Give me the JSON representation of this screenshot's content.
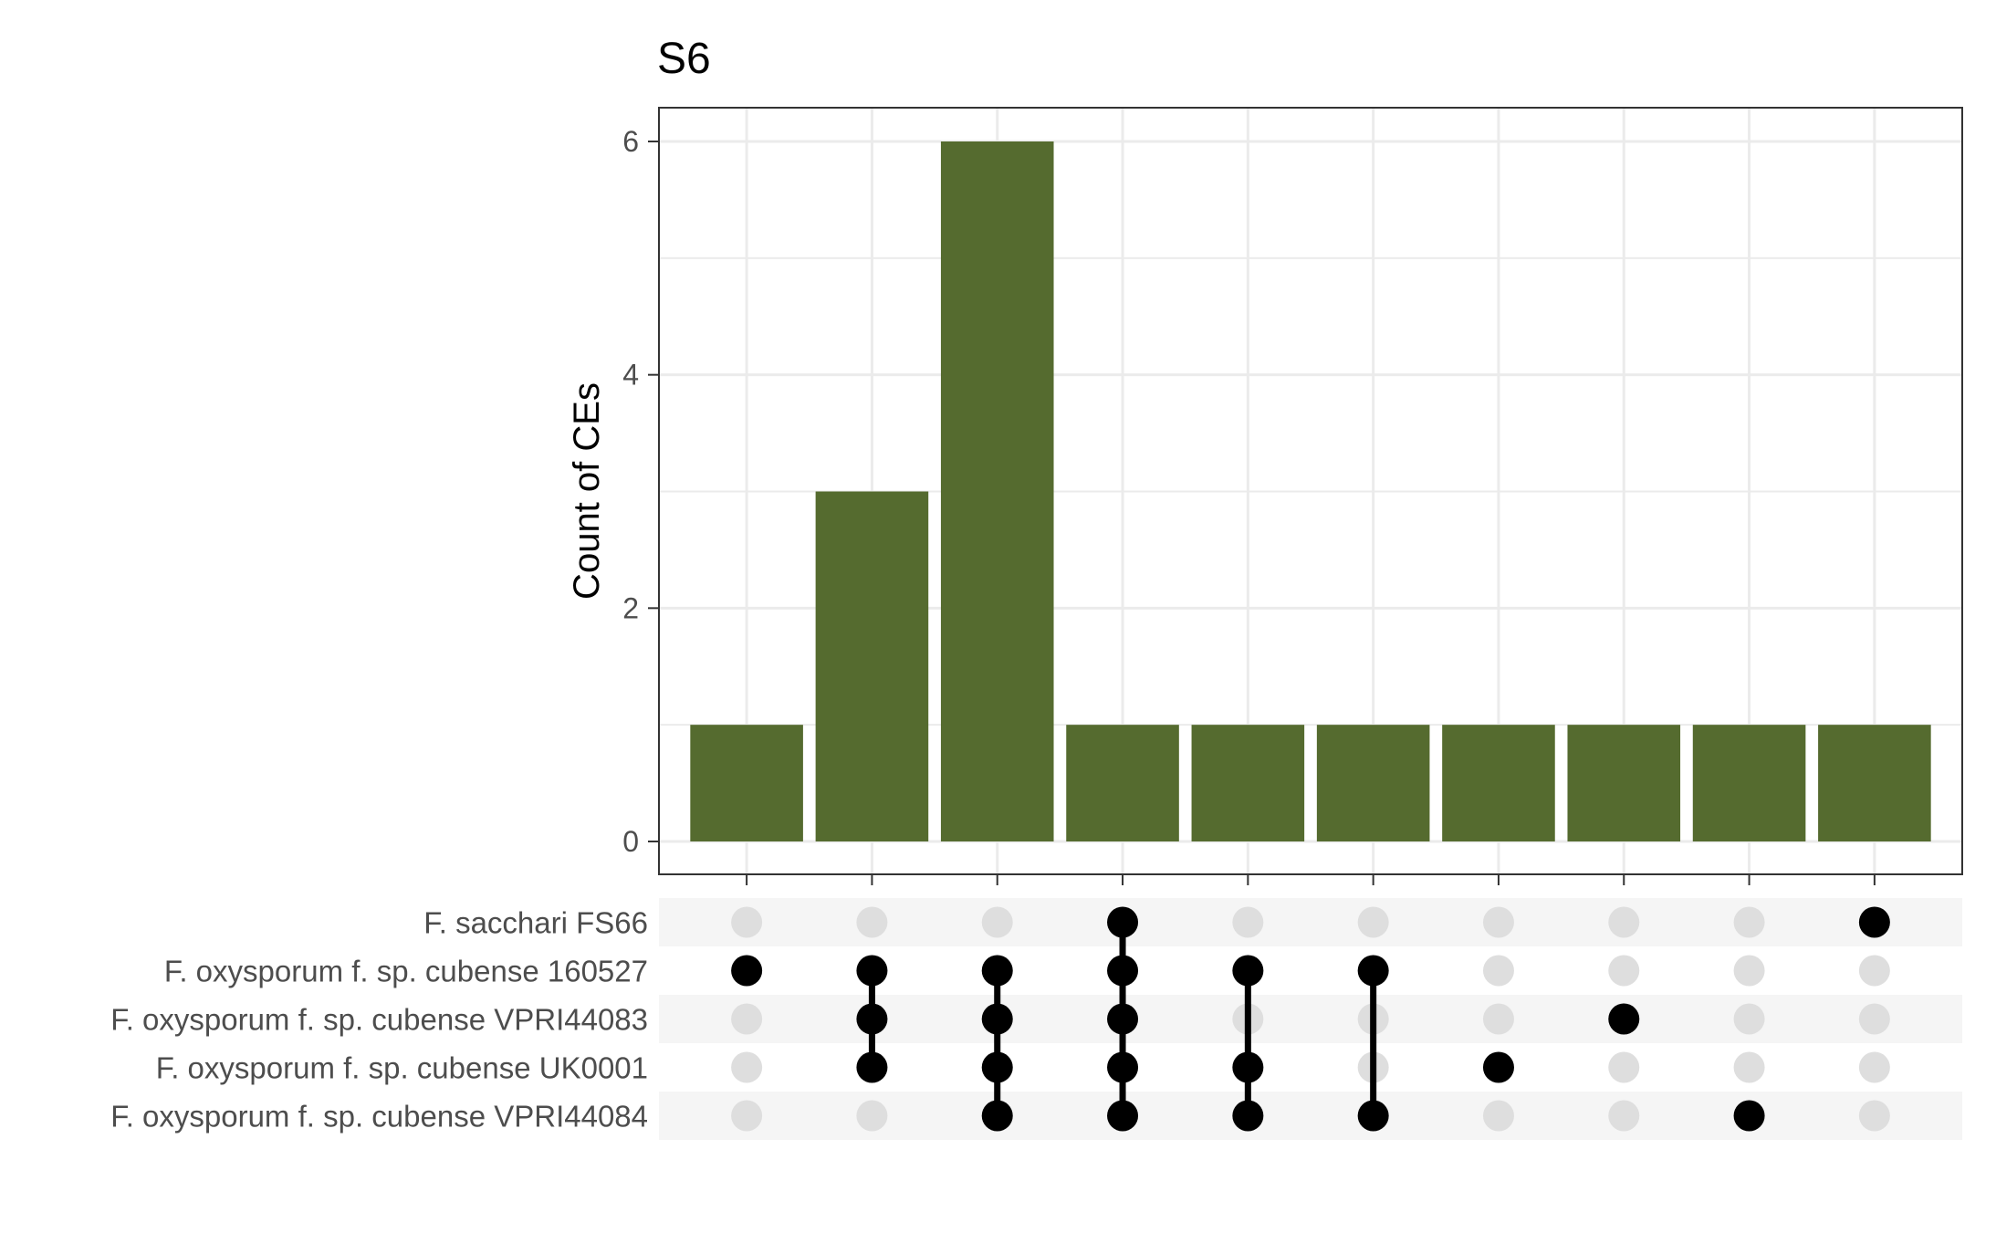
{
  "chart_data": {
    "type": "bar",
    "title": "S6",
    "ylabel": "Count of CEs",
    "xlabel": "",
    "ylim": [
      0,
      6.3
    ],
    "yticks": [
      0,
      2,
      4,
      6
    ],
    "grid": true,
    "colors": {
      "bar": "#556b2f",
      "dot_active": "#000000",
      "dot_inactive": "#dedede",
      "stripe": "#f5f5f5",
      "grid": "#ebebeb",
      "frame": "#333333"
    },
    "sets": [
      "F. sacchari FS66",
      "F. oxysporum f. sp. cubense 160527",
      "F. oxysporum f. sp. cubense VPRI44083",
      "F. oxysporum f. sp. cubense UK0001",
      "F. oxysporum f. sp. cubense VPRI44084"
    ],
    "intersections": [
      {
        "members": [
          1
        ],
        "value": 1
      },
      {
        "members": [
          1,
          2,
          3
        ],
        "value": 3
      },
      {
        "members": [
          1,
          2,
          3,
          4
        ],
        "value": 6
      },
      {
        "members": [
          0,
          1,
          2,
          3,
          4
        ],
        "value": 1
      },
      {
        "members": [
          1,
          3,
          4
        ],
        "value": 1
      },
      {
        "members": [
          1,
          4
        ],
        "value": 1
      },
      {
        "members": [
          3
        ],
        "value": 1
      },
      {
        "members": [
          2
        ],
        "value": 1
      },
      {
        "members": [
          4
        ],
        "value": 1
      },
      {
        "members": [
          0
        ],
        "value": 1
      }
    ]
  }
}
